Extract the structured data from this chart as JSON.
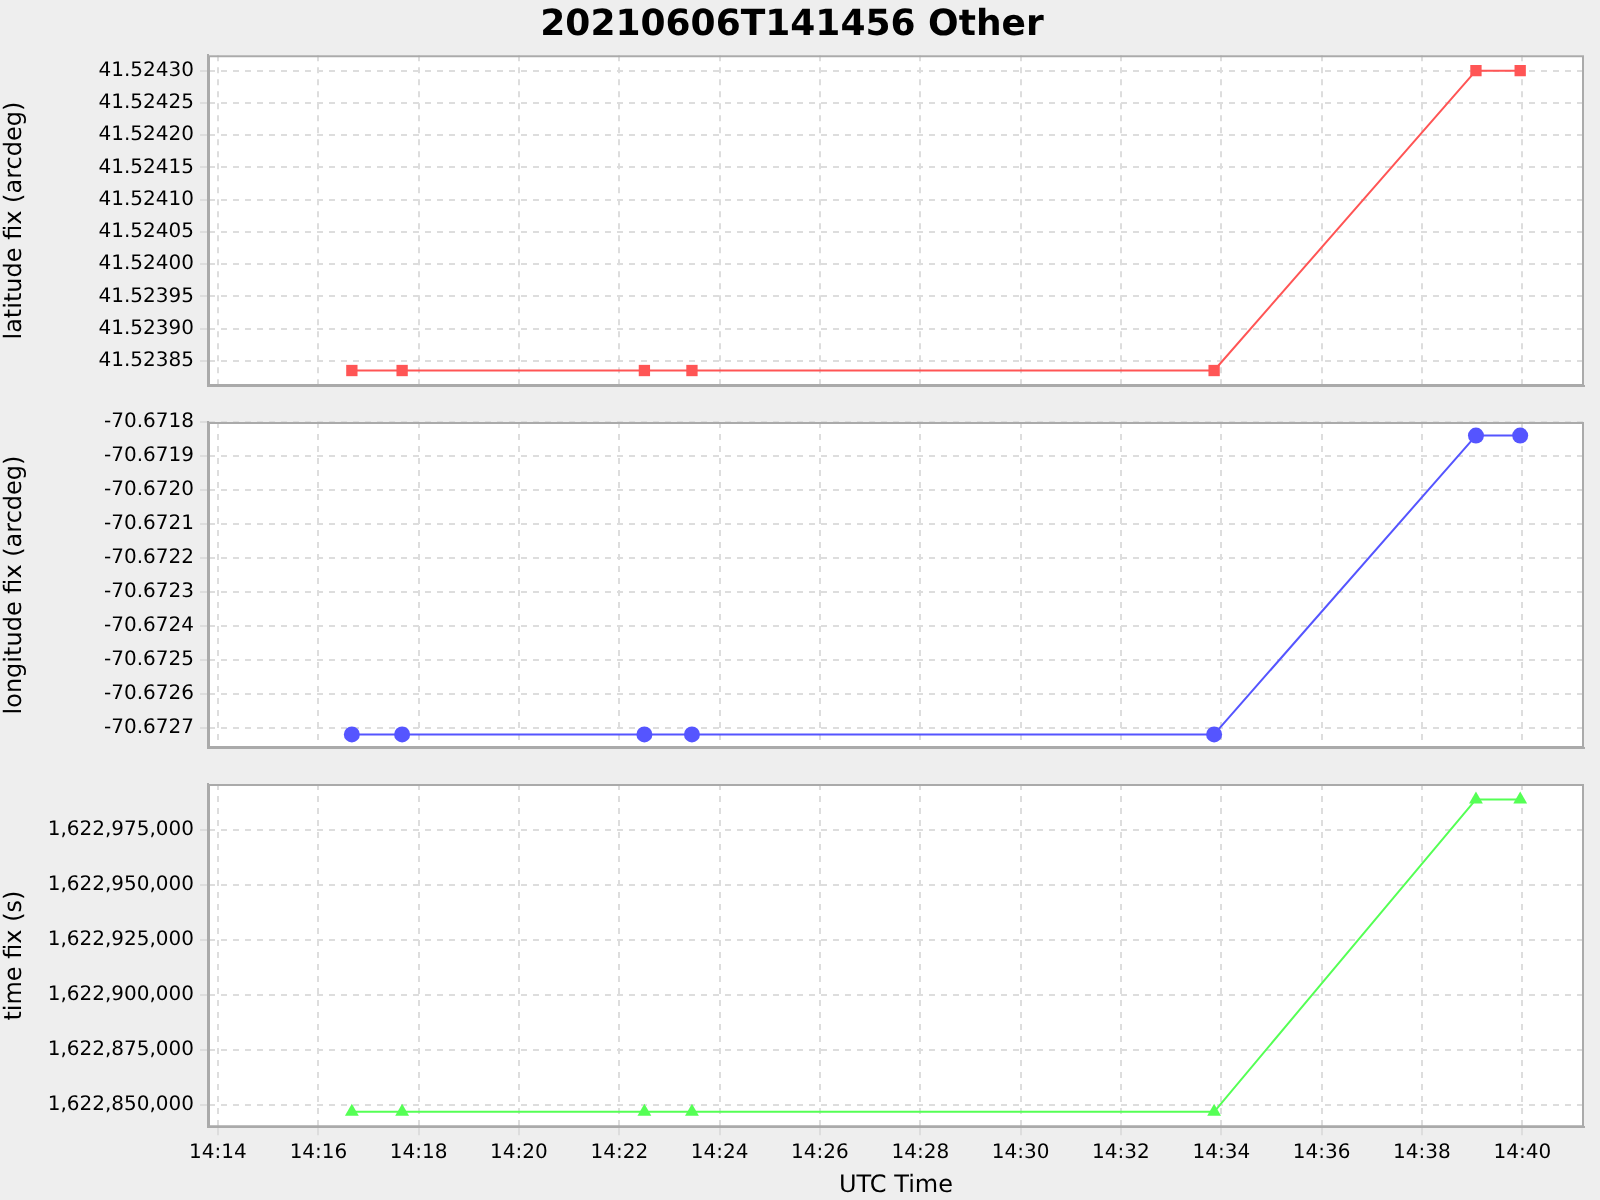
{
  "chart_data": [
    {
      "type": "line",
      "title": "20210606T141456 Other",
      "ylabel": "latitude fix (arcdeg)",
      "x": [
        14.2778,
        14.2945,
        14.375,
        14.3908,
        14.5643,
        14.6513,
        14.666
      ],
      "values": [
        41.523835,
        41.523835,
        41.523835,
        41.523835,
        41.523835,
        41.5243,
        41.5243
      ],
      "color": "#ff5555",
      "xlim": [
        14.23,
        14.6872
      ],
      "xticks": [
        {
          "value": 14.2333,
          "label": null
        },
        {
          "value": 14.2667,
          "label": null
        },
        {
          "value": 14.3,
          "label": null
        },
        {
          "value": 14.3333,
          "label": null
        },
        {
          "value": 14.3667,
          "label": null
        },
        {
          "value": 14.4,
          "label": null
        },
        {
          "value": 14.4333,
          "label": null
        },
        {
          "value": 14.4667,
          "label": null
        },
        {
          "value": 14.5,
          "label": null
        },
        {
          "value": 14.5333,
          "label": null
        },
        {
          "value": 14.5667,
          "label": null
        },
        {
          "value": 14.6,
          "label": null
        },
        {
          "value": 14.6333,
          "label": null
        },
        {
          "value": 14.6667,
          "label": null
        }
      ],
      "ylim": [
        41.523811,
        41.524324
      ],
      "yticks": [
        {
          "value": 41.52385,
          "label": "41.52385"
        },
        {
          "value": 41.5239,
          "label": "41.52390"
        },
        {
          "value": 41.52395,
          "label": "41.52395"
        },
        {
          "value": 41.524,
          "label": "41.52400"
        },
        {
          "value": 41.52405,
          "label": "41.52405"
        },
        {
          "value": 41.5241,
          "label": "41.52410"
        },
        {
          "value": 41.52415,
          "label": "41.52415"
        },
        {
          "value": 41.5242,
          "label": "41.52420"
        },
        {
          "value": 41.52425,
          "label": "41.52425"
        },
        {
          "value": 41.5243,
          "label": "41.52430"
        }
      ],
      "grid": true,
      "marker": "square",
      "tick_labels": "y"
    },
    {
      "type": "line",
      "ylabel": "longitude fix (arcdeg)",
      "x": [
        14.2778,
        14.2945,
        14.375,
        14.3908,
        14.5643,
        14.6513,
        14.666
      ],
      "values": [
        -70.67272,
        -70.67272,
        -70.67272,
        -70.67272,
        -70.67272,
        -70.67184,
        -70.67184
      ],
      "color": "#5555ff",
      "xlim": [
        14.23,
        14.6872
      ],
      "xticks": [
        {
          "value": 14.2333,
          "label": null
        },
        {
          "value": 14.2667,
          "label": null
        },
        {
          "value": 14.3,
          "label": null
        },
        {
          "value": 14.3333,
          "label": null
        },
        {
          "value": 14.3667,
          "label": null
        },
        {
          "value": 14.4,
          "label": null
        },
        {
          "value": 14.4333,
          "label": null
        },
        {
          "value": 14.4667,
          "label": null
        },
        {
          "value": 14.5,
          "label": null
        },
        {
          "value": 14.5333,
          "label": null
        },
        {
          "value": 14.5667,
          "label": null
        },
        {
          "value": 14.6,
          "label": null
        },
        {
          "value": 14.6333,
          "label": null
        },
        {
          "value": 14.6667,
          "label": null
        }
      ],
      "ylim": [
        -70.67276,
        -70.6718
      ],
      "yticks": [
        {
          "value": -70.6727,
          "label": "-70.6727"
        },
        {
          "value": -70.6726,
          "label": "-70.6726"
        },
        {
          "value": -70.6725,
          "label": "-70.6725"
        },
        {
          "value": -70.6724,
          "label": "-70.6724"
        },
        {
          "value": -70.6723,
          "label": "-70.6723"
        },
        {
          "value": -70.6722,
          "label": "-70.6722"
        },
        {
          "value": -70.6721,
          "label": "-70.6721"
        },
        {
          "value": -70.672,
          "label": "-70.6720"
        },
        {
          "value": -70.6719,
          "label": "-70.6719"
        },
        {
          "value": -70.6718,
          "label": "-70.6718"
        }
      ],
      "grid": true,
      "marker": "circle",
      "tick_labels": "y"
    },
    {
      "type": "line",
      "xlabel": "UTC Time",
      "ylabel": "time fix (s)",
      "x": [
        14.2778,
        14.2945,
        14.375,
        14.3908,
        14.5643,
        14.6513,
        14.666
      ],
      "values": [
        1622847000,
        1622847000,
        1622847000,
        1622847000,
        1622847000,
        1622989000,
        1622989000
      ],
      "color": "#55ff55",
      "xlim": [
        14.23,
        14.6872
      ],
      "xticks": [
        {
          "value": 14.2333,
          "label": "14:14"
        },
        {
          "value": 14.2667,
          "label": "14:16"
        },
        {
          "value": 14.3,
          "label": "14:18"
        },
        {
          "value": 14.3333,
          "label": "14:20"
        },
        {
          "value": 14.3667,
          "label": "14:22"
        },
        {
          "value": 14.4,
          "label": "14:24"
        },
        {
          "value": 14.4333,
          "label": "14:26"
        },
        {
          "value": 14.4667,
          "label": "14:28"
        },
        {
          "value": 14.5,
          "label": "14:30"
        },
        {
          "value": 14.5333,
          "label": "14:32"
        },
        {
          "value": 14.5667,
          "label": "14:34"
        },
        {
          "value": 14.6,
          "label": "14:36"
        },
        {
          "value": 14.6333,
          "label": "14:38"
        },
        {
          "value": 14.6667,
          "label": "14:40"
        }
      ],
      "ylim": [
        1622840000,
        1622996000
      ],
      "yticks": [
        {
          "value": 1622850000,
          "label": "1,622,850,000"
        },
        {
          "value": 1622875000,
          "label": "1,622,875,000"
        },
        {
          "value": 1622900000,
          "label": "1,622,900,000"
        },
        {
          "value": 1622925000,
          "label": "1,622,925,000"
        },
        {
          "value": 1622950000,
          "label": "1,622,950,000"
        },
        {
          "value": 1622975000,
          "label": "1,622,975,000"
        }
      ],
      "grid": true,
      "marker": "triangle"
    }
  ]
}
